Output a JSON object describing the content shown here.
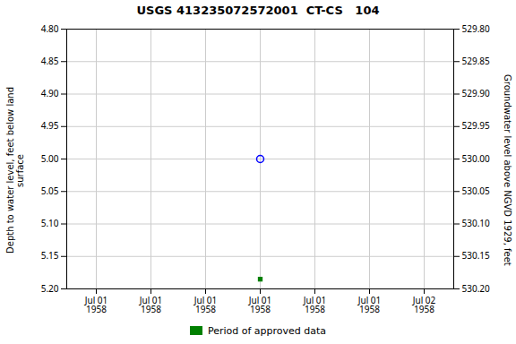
{
  "chart_data": {
    "type": "scatter",
    "title": "USGS 413235072572001  CT-CS   104",
    "y_label": "Depth to water level, feet below land\nsurface",
    "y2_label": "Groundwater level above NGVD 1929, feet",
    "categories": [
      "Jul 01\n1958",
      "Jul 01\n1958",
      "Jul 01\n1958",
      "Jul 01\n1958",
      "Jul 01\n1958",
      "Jul 01\n1958",
      "Jul 02\n1958"
    ],
    "series": [
      {
        "color": "blue",
        "marker": "circle",
        "values": [
          null,
          null,
          null,
          5.0,
          null,
          null,
          null
        ]
      },
      {
        "name": "Period of approved data",
        "color": "#008000",
        "marker": "square",
        "values": [
          null,
          null,
          null,
          5.185,
          null,
          null,
          null
        ]
      }
    ],
    "ylim": [
      5.2,
      4.8
    ],
    "yticks": [
      {
        "value": 4.8,
        "label": "4.80"
      },
      {
        "value": 4.85,
        "label": "4.85"
      },
      {
        "value": 4.9,
        "label": "4.90"
      },
      {
        "value": 4.95,
        "label": "4.95"
      },
      {
        "value": 5.0,
        "label": "5.00"
      },
      {
        "value": 5.05,
        "label": "5.05"
      },
      {
        "value": 5.1,
        "label": "5.10"
      },
      {
        "value": 5.15,
        "label": "5.15"
      },
      {
        "value": 5.2,
        "label": "5.20"
      }
    ],
    "y2lim": [
      530.2,
      529.8
    ],
    "y2ticks": [
      {
        "value": 530.2,
        "label": "530.20"
      },
      {
        "value": 530.15,
        "label": "530.15"
      },
      {
        "value": 530.1,
        "label": "530.10"
      },
      {
        "value": 530.05,
        "label": "530.05"
      },
      {
        "value": 530.0,
        "label": "530.00"
      },
      {
        "value": 529.95,
        "label": "529.95"
      },
      {
        "value": 529.9,
        "label": "529.90"
      },
      {
        "value": 529.85,
        "label": "529.85"
      },
      {
        "value": 529.8,
        "label": "529.80"
      }
    ],
    "grid": true,
    "legend": "bottom"
  }
}
